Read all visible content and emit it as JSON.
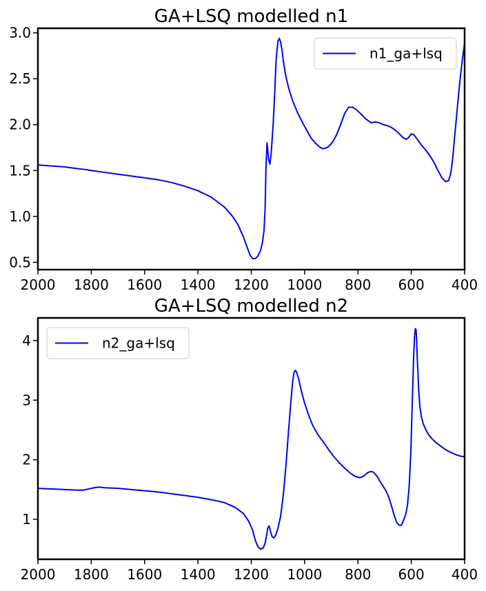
{
  "chart_data": [
    {
      "type": "line",
      "title": "GA+LSQ modelled n1",
      "xlabel": "",
      "ylabel": "",
      "xlim": [
        2000,
        400
      ],
      "ylim": [
        0.42,
        3.05
      ],
      "x_reversed": true,
      "xticks": [
        2000,
        1800,
        1600,
        1400,
        1200,
        1000,
        800,
        600,
        400
      ],
      "xtick_labels": [
        "2000",
        "1800",
        "1600",
        "1400",
        "1200",
        "1000",
        "800",
        "600",
        "400"
      ],
      "yticks": [
        0.5,
        1.0,
        1.5,
        2.0,
        2.5,
        3.0
      ],
      "ytick_labels": [
        "0.5",
        "1.0",
        "1.5",
        "2.0",
        "2.5",
        "3.0"
      ],
      "legend_position": "upper-right",
      "grid": false,
      "series": [
        {
          "name": "n1_ga+lsq",
          "color": "#0000ee",
          "x": [
            2000,
            1950,
            1900,
            1850,
            1820,
            1810,
            1800,
            1750,
            1700,
            1650,
            1600,
            1550,
            1500,
            1450,
            1400,
            1350,
            1300,
            1270,
            1250,
            1230,
            1215,
            1205,
            1195,
            1185,
            1175,
            1165,
            1158,
            1152,
            1148,
            1145,
            1141,
            1138,
            1135,
            1130,
            1125,
            1118,
            1112,
            1107,
            1100,
            1095,
            1090,
            1085,
            1080,
            1072,
            1060,
            1045,
            1025,
            1000,
            975,
            950,
            935,
            925,
            910,
            895,
            880,
            865,
            850,
            835,
            820,
            805,
            790,
            770,
            750,
            735,
            720,
            705,
            690,
            675,
            660,
            645,
            632,
            620,
            610,
            600,
            590,
            580,
            570,
            560,
            545,
            530,
            515,
            500,
            485,
            472,
            460,
            452,
            445,
            438,
            430,
            422,
            415,
            408,
            402,
            400
          ],
          "y": [
            1.56,
            1.55,
            1.54,
            1.52,
            1.51,
            1.505,
            1.5,
            1.48,
            1.46,
            1.44,
            1.42,
            1.4,
            1.37,
            1.33,
            1.28,
            1.21,
            1.1,
            1.0,
            0.91,
            0.78,
            0.66,
            0.58,
            0.54,
            0.54,
            0.57,
            0.63,
            0.72,
            0.85,
            1.1,
            1.52,
            1.8,
            1.72,
            1.62,
            1.57,
            1.7,
            2.0,
            2.35,
            2.7,
            2.91,
            2.94,
            2.9,
            2.82,
            2.7,
            2.55,
            2.4,
            2.26,
            2.12,
            1.98,
            1.85,
            1.77,
            1.74,
            1.74,
            1.76,
            1.81,
            1.89,
            2.0,
            2.12,
            2.19,
            2.19,
            2.16,
            2.12,
            2.06,
            2.02,
            2.03,
            2.02,
            2.0,
            1.99,
            1.97,
            1.94,
            1.9,
            1.86,
            1.84,
            1.86,
            1.9,
            1.89,
            1.85,
            1.81,
            1.77,
            1.72,
            1.66,
            1.59,
            1.5,
            1.42,
            1.38,
            1.39,
            1.47,
            1.62,
            1.85,
            2.1,
            2.35,
            2.55,
            2.72,
            2.85,
            2.9
          ]
        }
      ]
    },
    {
      "type": "line",
      "title": "GA+LSQ modelled n2",
      "xlabel": "",
      "ylabel": "",
      "xlim": [
        2000,
        400
      ],
      "ylim": [
        0.33,
        4.38
      ],
      "x_reversed": true,
      "xticks": [
        2000,
        1800,
        1600,
        1400,
        1200,
        1000,
        800,
        600,
        400
      ],
      "xtick_labels": [
        "2000",
        "1800",
        "1600",
        "1400",
        "1200",
        "1000",
        "800",
        "600",
        "400"
      ],
      "yticks": [
        1,
        2,
        3,
        4
      ],
      "ytick_labels": [
        "1",
        "2",
        "3",
        "4"
      ],
      "legend_position": "upper-left",
      "grid": false,
      "series": [
        {
          "name": "n2_ga+lsq",
          "color": "#0000ee",
          "x": [
            2000,
            1950,
            1900,
            1850,
            1830,
            1810,
            1790,
            1770,
            1750,
            1700,
            1650,
            1600,
            1550,
            1500,
            1450,
            1400,
            1350,
            1300,
            1260,
            1230,
            1210,
            1195,
            1185,
            1175,
            1165,
            1155,
            1148,
            1142,
            1138,
            1133,
            1128,
            1122,
            1115,
            1108,
            1100,
            1090,
            1080,
            1070,
            1060,
            1050,
            1045,
            1040,
            1035,
            1030,
            1022,
            1012,
            1000,
            985,
            970,
            950,
            930,
            910,
            890,
            870,
            850,
            830,
            810,
            795,
            785,
            775,
            765,
            755,
            745,
            735,
            725,
            715,
            705,
            695,
            685,
            675,
            665,
            655,
            645,
            638,
            632,
            626,
            620,
            614,
            608,
            602,
            598,
            594,
            591,
            588,
            585,
            582,
            580,
            578,
            575,
            572,
            568,
            562,
            555,
            545,
            535,
            520,
            505,
            490,
            475,
            460,
            445,
            430,
            415,
            400
          ],
          "y": [
            1.52,
            1.51,
            1.5,
            1.49,
            1.49,
            1.51,
            1.53,
            1.54,
            1.53,
            1.52,
            1.5,
            1.48,
            1.46,
            1.43,
            1.4,
            1.37,
            1.33,
            1.28,
            1.2,
            1.1,
            0.97,
            0.82,
            0.65,
            0.54,
            0.5,
            0.52,
            0.6,
            0.75,
            0.86,
            0.89,
            0.8,
            0.71,
            0.69,
            0.74,
            0.85,
            1.05,
            1.4,
            1.9,
            2.5,
            3.05,
            3.3,
            3.46,
            3.5,
            3.47,
            3.35,
            3.15,
            2.95,
            2.75,
            2.58,
            2.42,
            2.3,
            2.17,
            2.05,
            1.95,
            1.86,
            1.78,
            1.72,
            1.7,
            1.71,
            1.74,
            1.78,
            1.8,
            1.8,
            1.76,
            1.7,
            1.62,
            1.55,
            1.48,
            1.38,
            1.24,
            1.08,
            0.95,
            0.9,
            0.9,
            0.95,
            1.02,
            1.1,
            1.25,
            1.55,
            2.1,
            2.7,
            3.3,
            3.75,
            4.05,
            4.2,
            4.18,
            4.0,
            3.75,
            3.45,
            3.15,
            2.9,
            2.72,
            2.6,
            2.5,
            2.42,
            2.34,
            2.28,
            2.23,
            2.18,
            2.14,
            2.11,
            2.08,
            2.06,
            2.05
          ]
        }
      ]
    }
  ]
}
